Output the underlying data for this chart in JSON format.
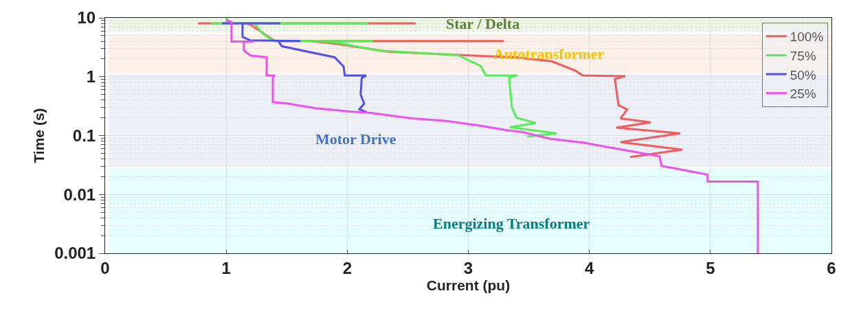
{
  "chart_data": {
    "type": "line",
    "xlabel": "Current (pu)",
    "ylabel": "Time (s)",
    "log": "y",
    "xlim": [
      0,
      6
    ],
    "xticks": [
      0,
      1,
      2,
      3,
      4,
      5,
      6
    ],
    "ylim": [
      0.001,
      10
    ],
    "yticks": [
      0.001,
      0.01,
      0.1,
      1,
      10
    ],
    "grid": true,
    "legend": "top right",
    "line_style": "solid",
    "marker": "none",
    "bands": [
      {
        "axis": "y",
        "from": 6,
        "to": 10,
        "color": "#edf5e6",
        "label": "Star / Delta"
      },
      {
        "axis": "y",
        "from": 1.15,
        "to": 5.2,
        "color": "#fcf0e8",
        "label": "Autotransformer"
      },
      {
        "axis": "y",
        "from": 0.03,
        "to": 1.1,
        "color": "#eef0f8",
        "label": "Motor Drive"
      },
      {
        "axis": "y",
        "from": 0.001,
        "to": 0.028,
        "color": "#e6ffff",
        "label": "Energizing Transformer"
      }
    ],
    "series": [
      {
        "name": "100%",
        "color": "#f25c5c",
        "x": [
          0.766,
          2.565,
          1.146,
          1.2,
          1.317,
          1.402,
          3.292,
          1.7,
          1.896,
          2.35,
          3.104,
          3.388,
          3.689,
          3.888,
          3.944,
          4.296,
          4.211,
          4.24,
          4.313,
          4.257,
          4.506,
          4.222,
          4.75,
          4.257,
          4.767,
          4.336
        ],
        "values": [
          8.09,
          8.09,
          8.09,
          7.67,
          5.28,
          4.05,
          4.05,
          4.0,
          3.65,
          2.65,
          2.26,
          2.14,
          1.83,
          1.26,
          1.05,
          1.02,
          0.916,
          0.33,
          0.277,
          0.196,
          0.168,
          0.136,
          0.109,
          0.0776,
          0.0578,
          0.0433
        ]
      },
      {
        "name": "75%",
        "color": "#55ee55",
        "x": [
          1.005,
          1.005,
          0.874,
          2.174,
          1.232,
          1.288,
          1.356,
          1.4,
          2.213,
          1.75,
          1.896,
          2.253,
          2.917,
          3.104,
          3.144,
          3.405,
          3.337,
          3.36,
          3.4,
          3.558,
          3.343,
          3.729,
          3.485
        ],
        "values": [
          10,
          8.09,
          8.09,
          8.09,
          8.09,
          5.73,
          4.51,
          4.05,
          4.05,
          4.0,
          3.85,
          2.8,
          2.32,
          1.52,
          1.05,
          1.05,
          0.97,
          0.3,
          0.2,
          0.163,
          0.139,
          0.109,
          0.096
        ]
      },
      {
        "name": "50%",
        "color": "#5050f0",
        "x": [
          1.447,
          0.965,
          1.135,
          1.135,
          1.2,
          1.612,
          1.43,
          1.459,
          1.896,
          1.969,
          1.98,
          2.157,
          2.12,
          2.11,
          2.14,
          2.1,
          2.16
        ],
        "values": [
          8.09,
          8.09,
          8.09,
          4.75,
          4.15,
          4.05,
          4.05,
          3.3,
          2.14,
          1.5,
          1.05,
          1.05,
          0.95,
          0.5,
          0.35,
          0.28,
          0.25
        ]
      },
      {
        "name": "25%",
        "color": "#f050f0",
        "x": [
          1.0,
          1.044,
          1.044,
          1.23,
          1.146,
          1.146,
          1.2,
          1.334,
          1.334,
          1.402,
          1.385,
          1.385,
          1.504,
          1.742,
          2.026,
          2.196,
          2.367,
          2.537,
          2.821,
          3.104,
          3.331,
          3.445,
          3.672,
          3.956,
          4.24,
          4.58,
          4.597,
          4.977,
          4.977,
          5.392,
          5.392
        ],
        "values": [
          9.2,
          8.52,
          3.95,
          3.95,
          3.9,
          2.8,
          2.3,
          2.14,
          1.05,
          1.05,
          0.97,
          0.37,
          0.35,
          0.29,
          0.256,
          0.243,
          0.218,
          0.196,
          0.177,
          0.147,
          0.122,
          0.115,
          0.0886,
          0.0755,
          0.0594,
          0.0443,
          0.0306,
          0.0217,
          0.0166,
          0.0166,
          0.001
        ]
      }
    ]
  }
}
